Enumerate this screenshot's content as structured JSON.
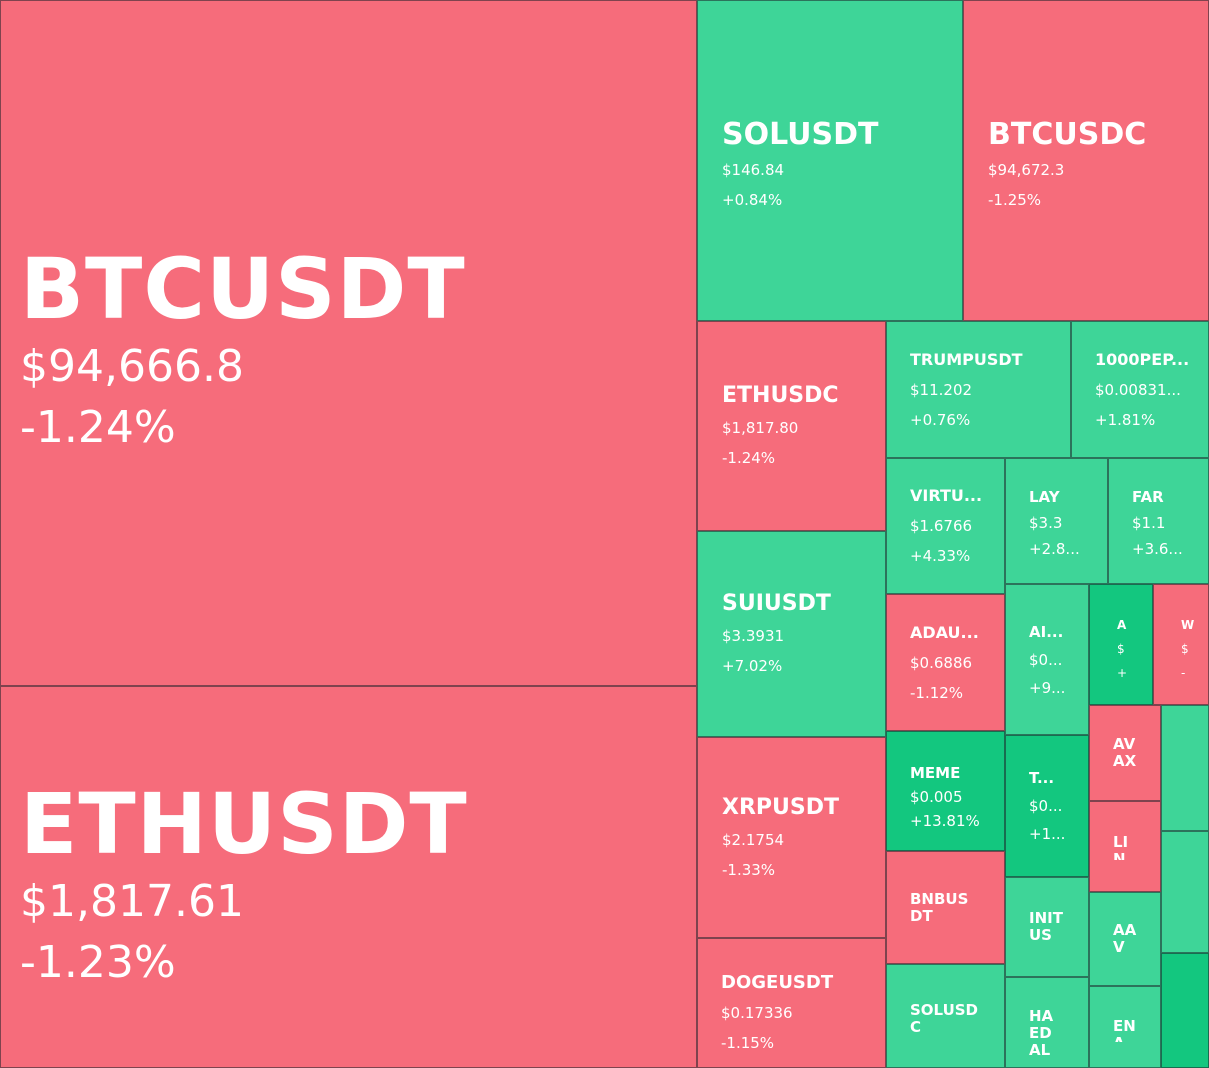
{
  "heatmap": {
    "tiles": [
      {
        "id": "btcusdt",
        "symbol": "BTCUSDT",
        "price": "$94,666.8",
        "change": "-1.24%",
        "color": "#f66c7b"
      },
      {
        "id": "ethusdt",
        "symbol": "ETHUSDT",
        "price": "$1,817.61",
        "change": "-1.23%",
        "color": "#f66c7b"
      },
      {
        "id": "solusdt",
        "symbol": "SOLUSDT",
        "price": "$146.84",
        "change": "+0.84%",
        "color": "#3ed598"
      },
      {
        "id": "btcusdc",
        "symbol": "BTCUSDC",
        "price": "$94,672.3",
        "change": "-1.25%",
        "color": "#f66c7b"
      },
      {
        "id": "ethusdc",
        "symbol": "ETHUSDC",
        "price": "$1,817.80",
        "change": "-1.24%",
        "color": "#f66c7b"
      },
      {
        "id": "suiusdt",
        "symbol": "SUIUSDT",
        "price": "$3.3931",
        "change": "+7.02%",
        "color": "#3ed598"
      },
      {
        "id": "xrpusdt",
        "symbol": "XRPUSDT",
        "price": "$2.1754",
        "change": "-1.33%",
        "color": "#f66c7b"
      },
      {
        "id": "dogeusdt",
        "symbol": "DOGEUSDT",
        "price": "$0.17336",
        "change": "-1.15%",
        "color": "#f66c7b"
      },
      {
        "id": "trumpusdt",
        "symbol": "TRUMPUSDT",
        "price": "$11.202",
        "change": "+0.76%",
        "color": "#3ed598"
      },
      {
        "id": "1000pep",
        "symbol": "1000PEP...",
        "price": "$0.00831...",
        "change": "+1.81%",
        "color": "#3ed598"
      },
      {
        "id": "virtu",
        "symbol": "VIRTU...",
        "price": "$1.6766",
        "change": "+4.33%",
        "color": "#3ed598"
      },
      {
        "id": "lay",
        "symbol": "LAY",
        "price": "$3.3",
        "change": "+2.8...",
        "color": "#3ed598"
      },
      {
        "id": "far",
        "symbol": "FAR",
        "price": "$1.1",
        "change": "+3.6...",
        "color": "#3ed598"
      },
      {
        "id": "adau",
        "symbol": "ADAU...",
        "price": "$0.6886",
        "change": "-1.12%",
        "color": "#f66c7b"
      },
      {
        "id": "ai",
        "symbol": "AI...",
        "price": "$0...",
        "change": "+9...",
        "color": "#3ed598"
      },
      {
        "id": "a-tiny",
        "symbol": "A",
        "price": "$",
        "change": "+",
        "color": "#13c77f"
      },
      {
        "id": "w-tiny",
        "symbol": "W",
        "price": "$",
        "change": "-",
        "color": "#f66c7b"
      },
      {
        "id": "meme",
        "symbol": "MEME",
        "price": "$0.005",
        "change": "+13.81%",
        "color": "#13c77f"
      },
      {
        "id": "t",
        "symbol": "T...",
        "price": "$0...",
        "change": "+1...",
        "color": "#13c77f"
      },
      {
        "id": "avax",
        "symbol": "AVAX",
        "color": "#f66c7b"
      },
      {
        "id": "lin",
        "symbol": "LIN",
        "color": "#f66c7b"
      },
      {
        "id": "bnbusdt",
        "symbol": "BNBUSDT",
        "color": "#f66c7b"
      },
      {
        "id": "initus",
        "symbol": "INITUS",
        "color": "#3ed598"
      },
      {
        "id": "aav",
        "symbol": "AAV",
        "color": "#3ed598"
      },
      {
        "id": "solusdc",
        "symbol": "SOLUSDC",
        "color": "#3ed598"
      },
      {
        "id": "haedal",
        "symbol": "HAEDAL",
        "color": "#3ed598"
      },
      {
        "id": "en",
        "symbol": "ENA",
        "color": "#3ed598"
      },
      {
        "id": "edge-1",
        "symbol": "",
        "color": "#3ed598"
      },
      {
        "id": "edge-2",
        "symbol": "",
        "color": "#3ed598"
      },
      {
        "id": "edge-3",
        "symbol": "",
        "color": "#13c77f"
      }
    ]
  }
}
